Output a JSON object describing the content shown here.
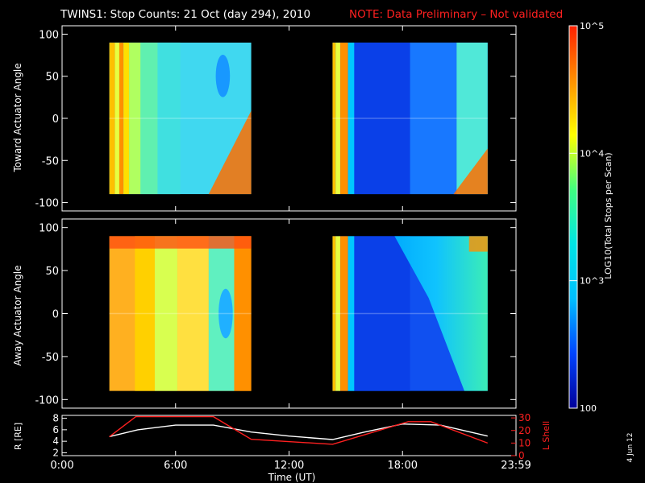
{
  "header": {
    "title": "TWINS1: Stop Counts: 21 Oct (day 294), 2010",
    "note": "NOTE: Data Preliminary – Not validated"
  },
  "colorbar": {
    "label": "LOG10(Total Stops per Scan)",
    "ticks": [
      "10^5",
      "10^4",
      "10^3",
      "100"
    ],
    "tick_values": [
      100000,
      10000,
      1000,
      100
    ],
    "range": [
      100,
      100000
    ],
    "colors": [
      "#00009a",
      "#0044ff",
      "#00bfff",
      "#00e5e5",
      "#40ff80",
      "#ffff00",
      "#ff9000",
      "#ff2000"
    ]
  },
  "footer": {
    "date_stamp": "4 Jun 12"
  },
  "chart_data": [
    {
      "type": "heatmap",
      "name": "toward",
      "ylabel": "Toward Actuator Angle",
      "ylim": [
        -110,
        110
      ],
      "yticks": [
        100,
        50,
        0,
        -50,
        -100
      ],
      "ytick_labels": [
        "100",
        "50",
        "0",
        "-50",
        "-100"
      ],
      "xlim": [
        0,
        24
      ],
      "data_blocks": [
        {
          "t_start": 2.5,
          "t_end": 10.0,
          "angle_range": [
            -90,
            90
          ]
        },
        {
          "t_start": 14.3,
          "t_end": 22.5,
          "angle_range": [
            -90,
            90
          ]
        }
      ]
    },
    {
      "type": "heatmap",
      "name": "away",
      "ylabel": "Away Actuator Angle",
      "ylim": [
        -110,
        110
      ],
      "yticks": [
        100,
        50,
        0,
        -50,
        -100
      ],
      "ytick_labels": [
        "100",
        "50",
        "0",
        "-50",
        "-100"
      ],
      "xlim": [
        0,
        24
      ],
      "data_blocks": [
        {
          "t_start": 2.5,
          "t_end": 10.0,
          "angle_range": [
            -90,
            90
          ]
        },
        {
          "t_start": 14.3,
          "t_end": 22.5,
          "angle_range": [
            -90,
            90
          ]
        }
      ]
    },
    {
      "type": "line",
      "name": "orbit",
      "xlabel": "Time (UT)",
      "xlim": [
        0,
        24
      ],
      "xticks": [
        0,
        6,
        12,
        18,
        24
      ],
      "xtick_labels": [
        "0:00",
        "6:00",
        "12:00",
        "18:00",
        "23:59"
      ],
      "left_axis": {
        "label": "R [RE]",
        "ylim": [
          1.5,
          8.5
        ],
        "ticks": [
          2,
          4,
          6,
          8
        ],
        "tick_labels": [
          "2",
          "4",
          "6",
          "8"
        ],
        "color": "#ffffff"
      },
      "right_axis": {
        "label": "L Shell",
        "ylim": [
          0,
          32
        ],
        "ticks": [
          0,
          10,
          20,
          30
        ],
        "tick_labels": [
          "0",
          "10",
          "20",
          "30"
        ],
        "color": "#ff2020"
      },
      "series": [
        {
          "name": "R",
          "axis": "left",
          "color": "#ffffff",
          "x": [
            2.5,
            4,
            6,
            8,
            10,
            12,
            14.3,
            16,
            18,
            20,
            22.5
          ],
          "y": [
            4.8,
            6.0,
            6.8,
            6.8,
            5.6,
            4.9,
            4.3,
            5.6,
            7.0,
            6.8,
            4.9
          ]
        },
        {
          "name": "L Shell",
          "axis": "right",
          "color": "#ff2020",
          "x": [
            2.5,
            3.9,
            8.0,
            10.0,
            14.3,
            18.3,
            19.5,
            22.5
          ],
          "y": [
            15,
            31,
            31,
            13,
            9,
            27,
            27,
            10
          ]
        }
      ]
    }
  ]
}
